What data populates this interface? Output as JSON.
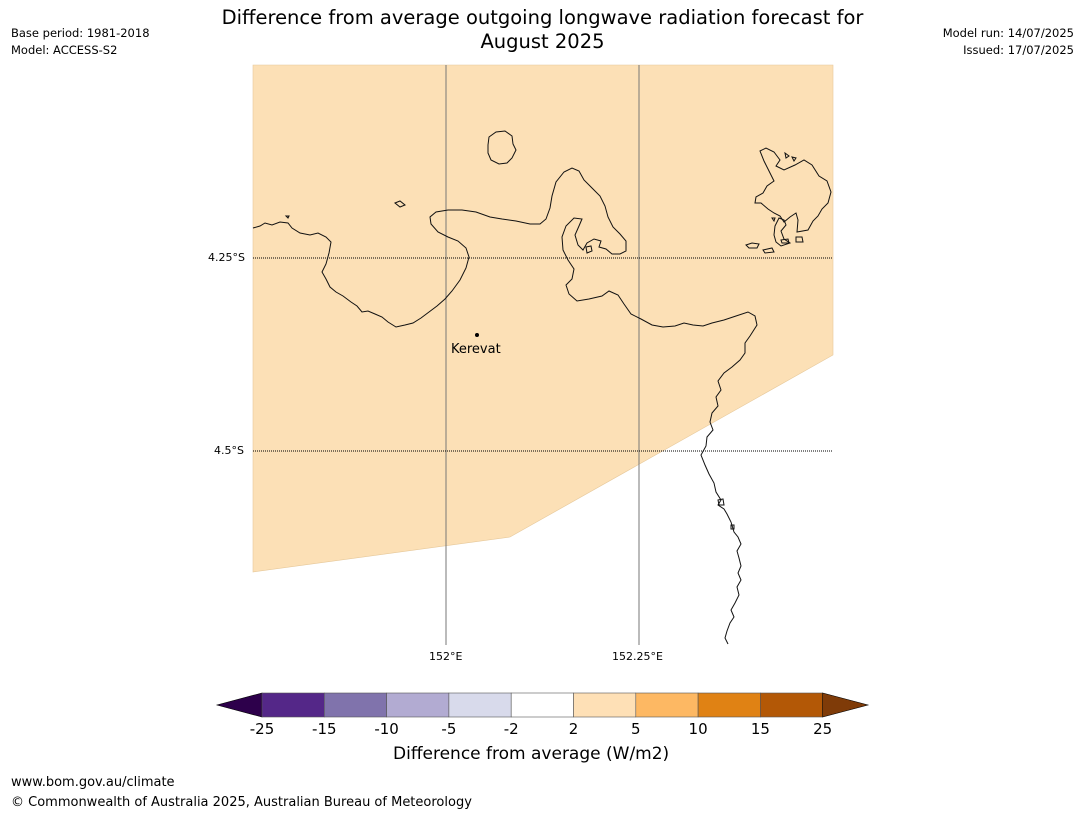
{
  "title": {
    "line1": "Difference from average outgoing longwave radiation forecast for",
    "line2": "August 2025"
  },
  "meta_left": {
    "base_period": "Base period: 1981-2018",
    "model": "Model: ACCESS-S2"
  },
  "meta_right": {
    "model_run": "Model run: 14/07/2025",
    "issued": "Issued: 17/07/2025"
  },
  "map": {
    "lat_labels": [
      "4.25°S",
      "4.5°S"
    ],
    "lon_labels": [
      "152°E",
      "152.25°E"
    ],
    "place": "Kerevat",
    "shading_color": "#fce0b6",
    "shading_category": "2 to 5"
  },
  "colorbar": {
    "title": "Difference from average (W/m2)",
    "ticks": [
      "-25",
      "-15",
      "-10",
      "-5",
      "-2",
      "2",
      "5",
      "10",
      "15",
      "25"
    ],
    "under_color": "#2d004b",
    "over_color": "#7f3b08",
    "colors": [
      "#542788",
      "#8073ac",
      "#b2abd2",
      "#d8daeb",
      "#ffffff",
      "#fee0b6",
      "#fdb863",
      "#e08214",
      "#b35806"
    ]
  },
  "footer": {
    "url": "www.bom.gov.au/climate",
    "copyright": "© Commonwealth of Australia 2025, Australian Bureau of Meteorology"
  }
}
